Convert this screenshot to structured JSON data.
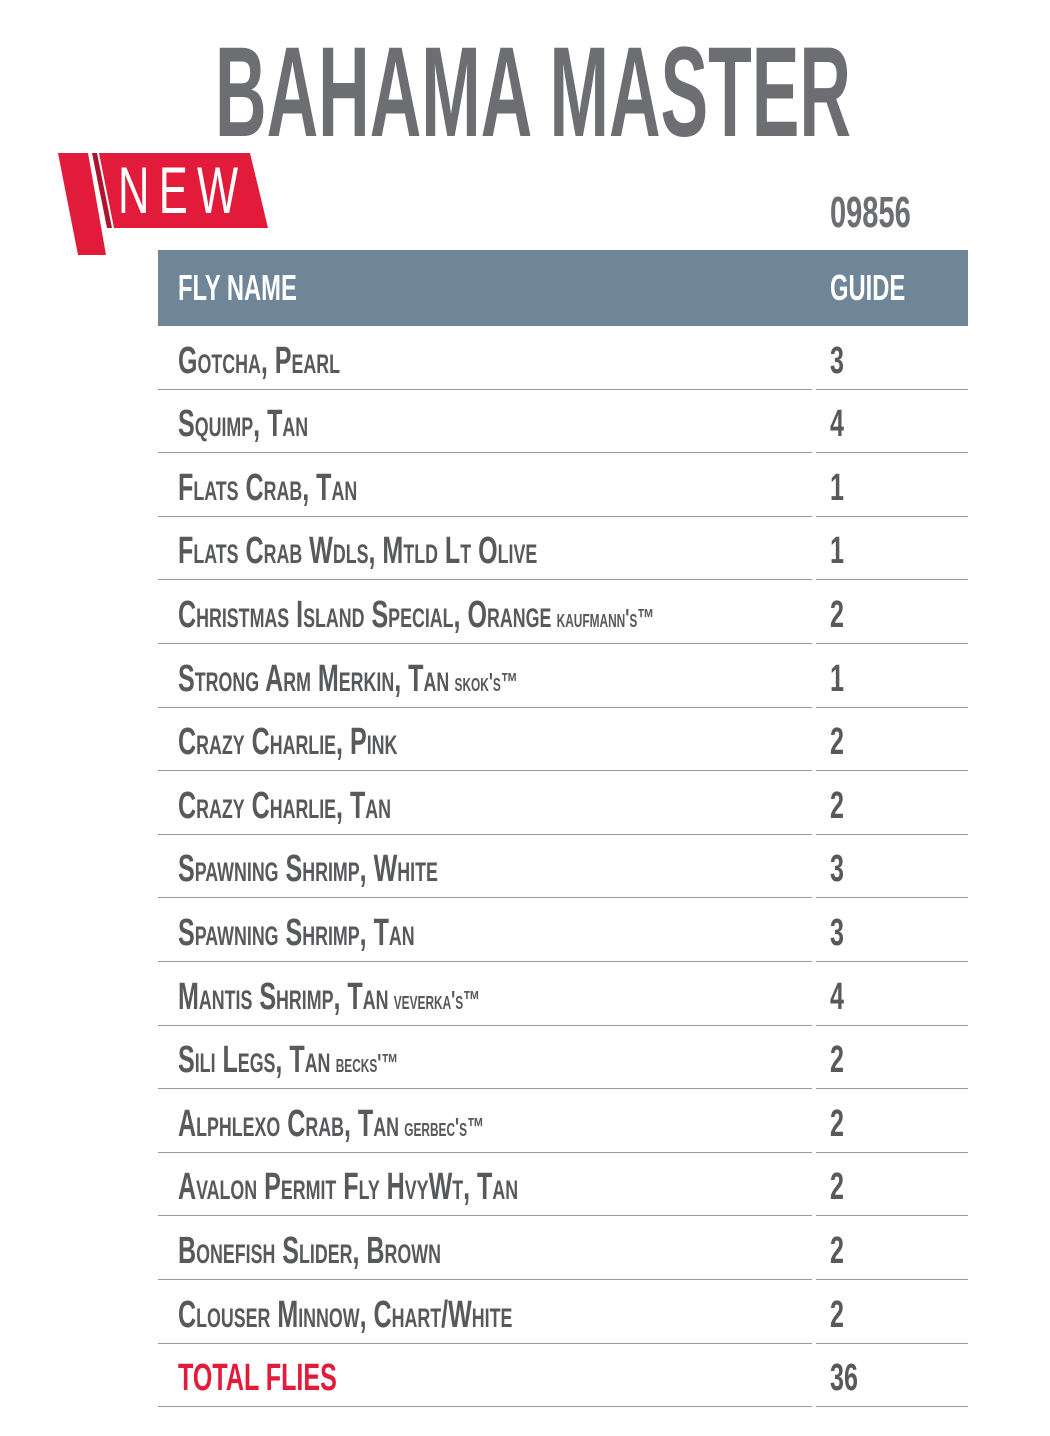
{
  "header": {
    "title": "BAHAMA MASTER",
    "badge": "NEW",
    "code": "09856"
  },
  "table": {
    "columns": [
      "FLY NAME",
      "GUIDE"
    ],
    "rows": [
      {
        "name": "Gotcha, Pearl",
        "qty": 3
      },
      {
        "name": "Squimp, Tan",
        "qty": 4
      },
      {
        "name": "Flats Crab, Tan",
        "qty": 1
      },
      {
        "name": "Flats Crab Wdls, Mtld Lt Olive",
        "qty": 1
      },
      {
        "name": "Christmas Island Special, Orange",
        "brand": "Kaufmann's™",
        "qty": 2
      },
      {
        "name": "Strong Arm Merkin, Tan",
        "brand": "Skok's™",
        "qty": 1
      },
      {
        "name": "Crazy Charlie, Pink",
        "qty": 2
      },
      {
        "name": "Crazy Charlie, Tan",
        "qty": 2
      },
      {
        "name": "Spawning Shrimp, White",
        "qty": 3
      },
      {
        "name": "Spawning Shrimp, Tan",
        "qty": 3
      },
      {
        "name": "Mantis Shrimp, Tan",
        "brand": "Veverka's™",
        "qty": 4
      },
      {
        "name": "Sili Legs, Tan",
        "brand": "Becks'™",
        "qty": 2
      },
      {
        "name": "Alphlexo Crab, Tan",
        "brand": "Gerbec's™",
        "qty": 2
      },
      {
        "name": "Avalon Permit Fly HvyWt, Tan",
        "qty": 2
      },
      {
        "name": "Bonefish Slider, Brown",
        "qty": 2
      },
      {
        "name": "Clouser Minnow, Chart/White",
        "qty": 2
      }
    ],
    "total": {
      "label": "TOTAL FLIES",
      "qty": 36
    }
  }
}
